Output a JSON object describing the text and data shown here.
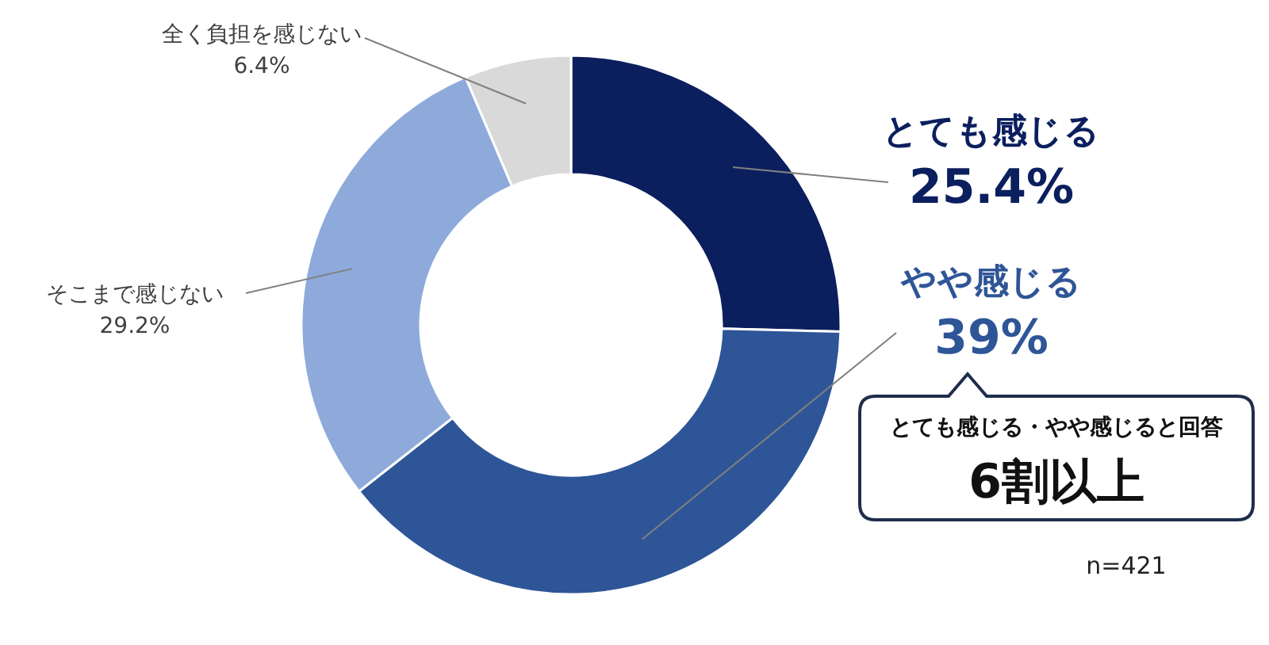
{
  "chart_data": {
    "type": "donut",
    "categories": [
      "とても感じる",
      "やや感じる",
      "そこまで感じない",
      "全く負担を感じない"
    ],
    "values": [
      25.4,
      39,
      29.2,
      6.4
    ],
    "value_labels": [
      "25.4%",
      "39%",
      "29.2%",
      "6.4%"
    ],
    "colors": [
      "#0b1f5e",
      "#2e5597",
      "#8eaadb",
      "#d9d9d9"
    ],
    "annotations": [
      "とても感じる・やや感じると回答",
      "6割以上",
      "n=421"
    ]
  }
}
